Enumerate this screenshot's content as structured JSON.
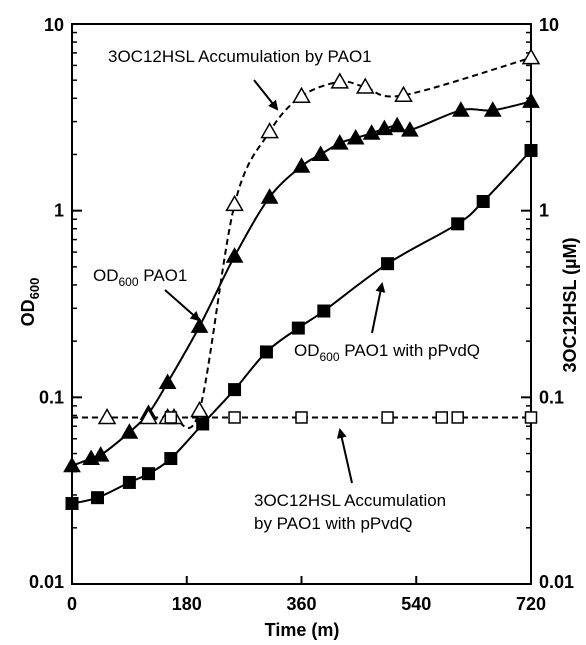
{
  "chart_data": {
    "type": "scatter",
    "x_axis": {
      "label": "Time (m)",
      "range": [
        0,
        720
      ],
      "ticks": [
        0,
        180,
        360,
        540,
        720
      ],
      "tick_labels": [
        "0",
        "180",
        "360",
        "540",
        "720"
      ]
    },
    "y_left": {
      "label": "OD",
      "label_sub": "600",
      "scale": "log",
      "range": [
        0.01,
        10
      ],
      "ticks": [
        0.01,
        0.1,
        1,
        10
      ],
      "tick_labels": [
        "0.01",
        "0.1",
        "1",
        "10"
      ]
    },
    "y_right": {
      "label": "3OC12HSL (µM)",
      "scale": "log",
      "range": [
        0.01,
        10
      ],
      "ticks": [
        0.01,
        0.1,
        1,
        10
      ],
      "tick_labels": [
        "0.01",
        "0.1",
        "1",
        "10"
      ]
    },
    "grid": false,
    "legend": "none",
    "series": [
      {
        "key": "od_pao1",
        "marker": "filled-triangle",
        "line": "solid",
        "axis": "left",
        "x": [
          0,
          30,
          45,
          90,
          120,
          150,
          200,
          255,
          310,
          360,
          390,
          420,
          445,
          470,
          490,
          510,
          530,
          610,
          660,
          720
        ],
        "y": [
          0.043,
          0.047,
          0.049,
          0.065,
          0.082,
          0.12,
          0.24,
          0.57,
          1.18,
          1.73,
          2.0,
          2.3,
          2.45,
          2.6,
          2.75,
          2.85,
          2.7,
          3.45,
          3.45,
          3.85
        ]
      },
      {
        "key": "od_pao1_pvdq",
        "marker": "filled-square",
        "line": "solid",
        "axis": "left",
        "x": [
          0,
          40,
          90,
          120,
          155,
          205,
          255,
          305,
          355,
          395,
          495,
          605,
          645,
          720
        ],
        "y": [
          0.027,
          0.029,
          0.035,
          0.039,
          0.047,
          0.072,
          0.11,
          0.175,
          0.235,
          0.29,
          0.52,
          0.85,
          1.12,
          2.1
        ]
      },
      {
        "key": "hsl_pao1",
        "marker": "open-triangle",
        "line": "dashed",
        "axis": "right",
        "x": [
          55,
          120,
          150,
          160,
          200,
          255,
          310,
          360,
          420,
          460,
          520,
          720
        ],
        "y": [
          0.078,
          0.078,
          0.078,
          0.078,
          0.085,
          1.08,
          2.65,
          4.1,
          4.9,
          4.6,
          4.15,
          6.6
        ]
      },
      {
        "key": "hsl_pao1_pvdq",
        "marker": "open-square",
        "line": "dashed",
        "axis": "right",
        "x": [
          155,
          255,
          360,
          495,
          580,
          605,
          720
        ],
        "y": [
          0.078,
          0.078,
          0.078,
          0.078,
          0.078,
          0.078,
          0.078
        ]
      }
    ],
    "annotations": {
      "hsl_pao1": "3OC12HSL Accumulation by PAO1",
      "od_pao1_main": "OD",
      "od_pao1_sub": "600",
      "od_pao1_tail": " PAO1",
      "od_pvdq_main": "OD",
      "od_pvdq_sub": "600",
      "od_pvdq_tail": " PAO1 with pPvdQ",
      "hsl_pvdq_line1": "3OC12HSL Accumulation",
      "hsl_pvdq_line2": "by PAO1 with pPvdQ"
    }
  }
}
